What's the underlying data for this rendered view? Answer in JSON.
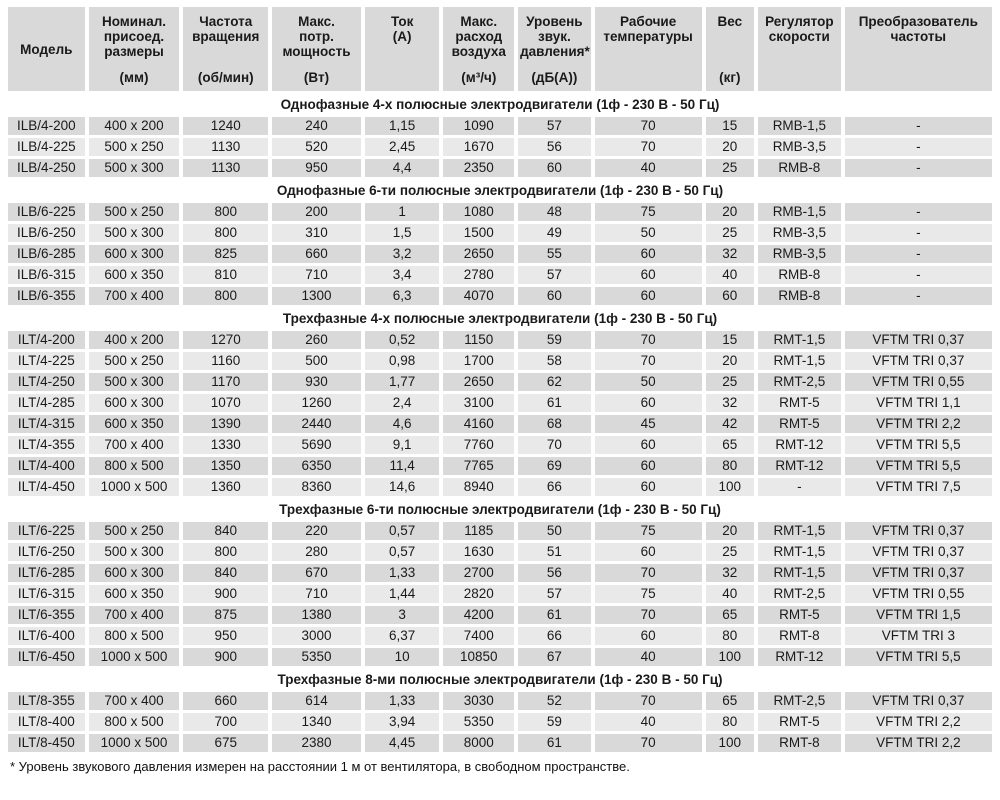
{
  "colors": {
    "header_bg": "#d9d9d9",
    "row_dark": "#d9d9d9",
    "row_light": "#e9e9e9",
    "text": "#1a1a1a"
  },
  "table": {
    "columns": [
      {
        "name": "Модель",
        "unit": ""
      },
      {
        "name": "Номинал.\nприсоед.\nразмеры",
        "unit": "(мм)"
      },
      {
        "name": "Частота\nвращения",
        "unit": "(об/мин)"
      },
      {
        "name": "Макс.\nпотр.\nмощность",
        "unit": "(Вт)"
      },
      {
        "name": "Ток\n(А)",
        "unit": ""
      },
      {
        "name": "Макс.\nрасход\nвоздуха",
        "unit": "(м³/ч)"
      },
      {
        "name": "Уровень\nзвук.\nдавления*",
        "unit": "(дБ(А))"
      },
      {
        "name": "Рабочие\nтемпературы",
        "unit": ""
      },
      {
        "name": "Вес",
        "unit": "(кг)"
      },
      {
        "name": "Регулятор\nскорости",
        "unit": ""
      },
      {
        "name": "Преобразователь\nчастоты",
        "unit": ""
      }
    ],
    "sections": [
      {
        "title": "Однофазные 4-х полюсные электродвигатели (1ф - 230 В - 50 Гц)",
        "rows": [
          [
            "ILB/4-200",
            "400 x 200",
            "1240",
            "240",
            "1,15",
            "1090",
            "57",
            "70",
            "15",
            "RMB-1,5",
            "-"
          ],
          [
            "ILB/4-225",
            "500 x 250",
            "1130",
            "520",
            "2,45",
            "1670",
            "56",
            "70",
            "20",
            "RMB-3,5",
            "-"
          ],
          [
            "ILB/4-250",
            "500 x 300",
            "1130",
            "950",
            "4,4",
            "2350",
            "60",
            "40",
            "25",
            "RMB-8",
            "-"
          ]
        ]
      },
      {
        "title": "Однофазные 6-ти полюсные электродвигатели (1ф - 230 В - 50 Гц)",
        "rows": [
          [
            "ILB/6-225",
            "500 x 250",
            "800",
            "200",
            "1",
            "1080",
            "48",
            "75",
            "20",
            "RMB-1,5",
            "-"
          ],
          [
            "ILB/6-250",
            "500 x 300",
            "800",
            "310",
            "1,5",
            "1500",
            "49",
            "50",
            "25",
            "RMB-3,5",
            "-"
          ],
          [
            "ILB/6-285",
            "600 x 300",
            "825",
            "660",
            "3,2",
            "2650",
            "55",
            "60",
            "32",
            "RMB-3,5",
            "-"
          ],
          [
            "ILB/6-315",
            "600 x 350",
            "810",
            "710",
            "3,4",
            "2780",
            "57",
            "60",
            "40",
            "RMB-8",
            "-"
          ],
          [
            "ILB/6-355",
            "700 x 400",
            "800",
            "1300",
            "6,3",
            "4070",
            "60",
            "60",
            "60",
            "RMB-8",
            "-"
          ]
        ]
      },
      {
        "title": "Трехфазные 4-х полюсные электродвигатели (1ф - 230 В - 50 Гц)",
        "rows": [
          [
            "ILT/4-200",
            "400 x 200",
            "1270",
            "260",
            "0,52",
            "1150",
            "59",
            "70",
            "15",
            "RMT-1,5",
            "VFTM TRI 0,37"
          ],
          [
            "ILT/4-225",
            "500 x 250",
            "1160",
            "500",
            "0,98",
            "1700",
            "58",
            "70",
            "20",
            "RMT-1,5",
            "VFTM TRI 0,37"
          ],
          [
            "ILT/4-250",
            "500 x 300",
            "1170",
            "930",
            "1,77",
            "2650",
            "62",
            "50",
            "25",
            "RMT-2,5",
            "VFTM TRI 0,55"
          ],
          [
            "ILT/4-285",
            "600 x 300",
            "1070",
            "1260",
            "2,4",
            "3100",
            "61",
            "60",
            "32",
            "RMT-5",
            "VFTM TRI 1,1"
          ],
          [
            "ILT/4-315",
            "600 x 350",
            "1390",
            "2440",
            "4,6",
            "4160",
            "68",
            "45",
            "42",
            "RMT-5",
            "VFTM TRI 2,2"
          ],
          [
            "ILT/4-355",
            "700 x 400",
            "1330",
            "5690",
            "9,1",
            "7760",
            "70",
            "60",
            "65",
            "RMT-12",
            "VFTM TRI 5,5"
          ],
          [
            "ILT/4-400",
            "800 x 500",
            "1350",
            "6350",
            "11,4",
            "7765",
            "69",
            "60",
            "80",
            "RMT-12",
            "VFTM TRI 5,5"
          ],
          [
            "ILT/4-450",
            "1000 x 500",
            "1360",
            "8360",
            "14,6",
            "8940",
            "66",
            "60",
            "100",
            "-",
            "VFTM TRI 7,5"
          ]
        ]
      },
      {
        "title": "Трехфазные 6-ти полюсные электродвигатели (1ф - 230 В - 50 Гц)",
        "rows": [
          [
            "ILT/6-225",
            "500 x 250",
            "840",
            "220",
            "0,57",
            "1185",
            "50",
            "75",
            "20",
            "RMT-1,5",
            "VFTM TRI 0,37"
          ],
          [
            "ILT/6-250",
            "500 x 300",
            "800",
            "280",
            "0,57",
            "1630",
            "51",
            "60",
            "25",
            "RMT-1,5",
            "VFTM TRI 0,37"
          ],
          [
            "ILT/6-285",
            "600 x 300",
            "840",
            "670",
            "1,33",
            "2700",
            "56",
            "70",
            "32",
            "RMT-1,5",
            "VFTM TRI 0,37"
          ],
          [
            "ILT/6-315",
            "600 x 350",
            "900",
            "710",
            "1,44",
            "2820",
            "57",
            "75",
            "40",
            "RMT-2,5",
            "VFTM TRI 0,55"
          ],
          [
            "ILT/6-355",
            "700 x 400",
            "875",
            "1380",
            "3",
            "4200",
            "61",
            "70",
            "65",
            "RMT-5",
            "VFTM TRI 1,5"
          ],
          [
            "ILT/6-400",
            "800 x 500",
            "950",
            "3000",
            "6,37",
            "7400",
            "66",
            "60",
            "80",
            "RMT-8",
            "VFTM TRI 3"
          ],
          [
            "ILT/6-450",
            "1000 x 500",
            "900",
            "5350",
            "10",
            "10850",
            "67",
            "40",
            "100",
            "RMT-12",
            "VFTM TRI 5,5"
          ]
        ]
      },
      {
        "title": "Трехфазные 8-ми полюсные электродвигатели (1ф - 230 В - 50 Гц)",
        "rows": [
          [
            "ILT/8-355",
            "700 x 400",
            "660",
            "614",
            "1,33",
            "3030",
            "52",
            "70",
            "65",
            "RMT-2,5",
            "VFTM TRI 0,37"
          ],
          [
            "ILT/8-400",
            "800 x 500",
            "700",
            "1340",
            "3,94",
            "5350",
            "59",
            "40",
            "80",
            "RMT-5",
            "VFTM TRI 2,2"
          ],
          [
            "ILT/8-450",
            "1000 x 500",
            "675",
            "2380",
            "4,45",
            "8000",
            "61",
            "70",
            "100",
            "RMT-8",
            "VFTM TRI 2,2"
          ]
        ]
      }
    ]
  },
  "footnote": "* Уровень звукового давления измерен на расстоянии 1 м от вентилятора, в свободном пространстве."
}
